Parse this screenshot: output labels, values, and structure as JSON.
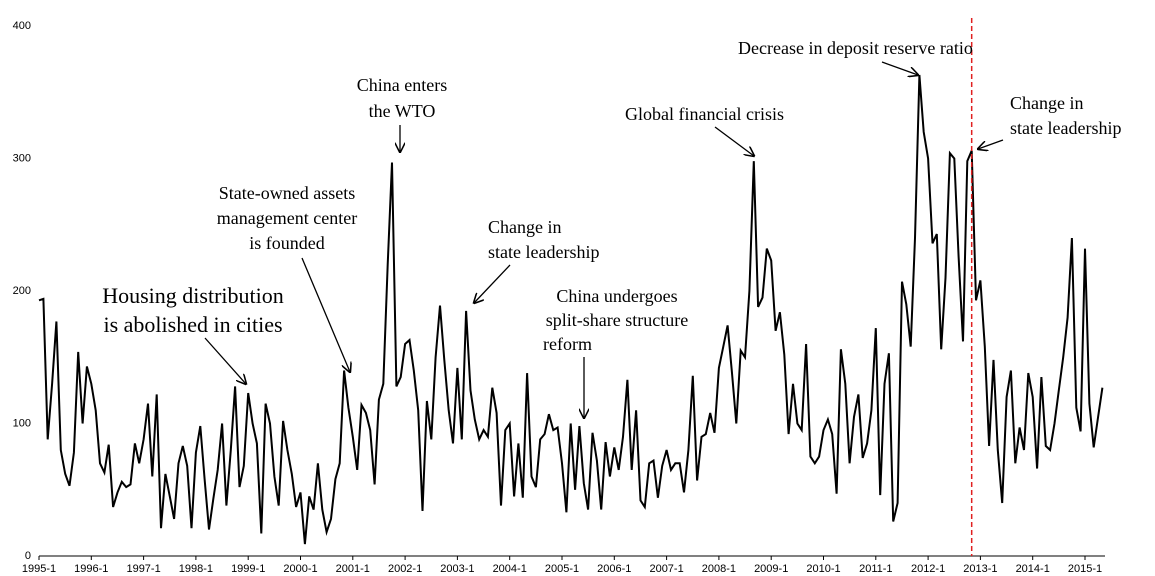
{
  "chart_data": {
    "type": "line",
    "categories": [
      "1995-1",
      null,
      null,
      null,
      null,
      null,
      null,
      null,
      null,
      null,
      null,
      null,
      "1996-1",
      null,
      null,
      null,
      null,
      null,
      null,
      null,
      null,
      null,
      null,
      null,
      "1997-1",
      null,
      null,
      null,
      null,
      null,
      null,
      null,
      null,
      null,
      null,
      null,
      "1998-1",
      null,
      null,
      null,
      null,
      null,
      null,
      null,
      null,
      null,
      null,
      null,
      "1999-1",
      null,
      null,
      null,
      null,
      null,
      null,
      null,
      null,
      null,
      null,
      null,
      "2000-1",
      null,
      null,
      null,
      null,
      null,
      null,
      null,
      null,
      null,
      null,
      null,
      "2001-1",
      null,
      null,
      null,
      null,
      null,
      null,
      null,
      null,
      null,
      null,
      null,
      "2002-1",
      null,
      null,
      null,
      null,
      null,
      null,
      null,
      null,
      null,
      null,
      null,
      "2003-1",
      null,
      null,
      null,
      null,
      null,
      null,
      null,
      null,
      null,
      null,
      null,
      "2004-1",
      null,
      null,
      null,
      null,
      null,
      null,
      null,
      null,
      null,
      null,
      null,
      "2005-1",
      null,
      null,
      null,
      null,
      null,
      null,
      null,
      null,
      null,
      null,
      null,
      "2006-1",
      null,
      null,
      null,
      null,
      null,
      null,
      null,
      null,
      null,
      null,
      null,
      "2007-1",
      null,
      null,
      null,
      null,
      null,
      null,
      null,
      null,
      null,
      null,
      null,
      "2008-1",
      null,
      null,
      null,
      null,
      null,
      null,
      null,
      null,
      null,
      null,
      null,
      "2009-1",
      null,
      null,
      null,
      null,
      null,
      null,
      null,
      null,
      null,
      null,
      null,
      "2010-1",
      null,
      null,
      null,
      null,
      null,
      null,
      null,
      null,
      null,
      null,
      null,
      "2011-1",
      null,
      null,
      null,
      null,
      null,
      null,
      null,
      null,
      null,
      null,
      null,
      "2012-1",
      null,
      null,
      null,
      null,
      null,
      null,
      null,
      null,
      null,
      null,
      null,
      "2013-1",
      null,
      null,
      null,
      null,
      null,
      null,
      null,
      null,
      null,
      null,
      null,
      "2014-1",
      null,
      null,
      null,
      null,
      null,
      null,
      null,
      null,
      null,
      null,
      null,
      "2015-1",
      null,
      null,
      null,
      null
    ],
    "values": [
      193,
      194,
      88,
      130,
      177,
      80,
      62,
      53,
      78,
      154,
      100,
      143,
      130,
      110,
      70,
      63,
      84,
      37,
      48,
      56,
      52,
      54,
      85,
      70,
      88,
      115,
      60,
      122,
      21,
      62,
      45,
      28,
      70,
      83,
      68,
      21,
      78,
      98,
      58,
      20,
      43,
      65,
      100,
      38,
      80,
      128,
      52,
      68,
      123,
      100,
      85,
      17,
      115,
      100,
      60,
      38,
      102,
      80,
      62,
      37,
      48,
      9,
      45,
      35,
      70,
      35,
      18,
      28,
      58,
      70,
      140,
      112,
      90,
      65,
      114,
      108,
      95,
      54,
      118,
      130,
      220,
      297,
      128,
      135,
      160,
      163,
      140,
      110,
      34,
      117,
      88,
      150,
      189,
      148,
      110,
      85,
      142,
      88,
      185,
      125,
      103,
      88,
      95,
      90,
      127,
      108,
      38,
      95,
      100,
      45,
      85,
      44,
      138,
      60,
      52,
      88,
      92,
      107,
      95,
      97,
      70,
      33,
      100,
      50,
      98,
      55,
      35,
      93,
      72,
      35,
      86,
      60,
      82,
      65,
      90,
      133,
      65,
      110,
      42,
      37,
      70,
      72,
      44,
      68,
      80,
      65,
      70,
      70,
      48,
      80,
      136,
      57,
      90,
      92,
      108,
      93,
      142,
      158,
      174,
      138,
      100,
      155,
      150,
      200,
      298,
      188,
      195,
      232,
      223,
      170,
      184,
      152,
      92,
      130,
      100,
      95,
      160,
      75,
      70,
      75,
      95,
      103,
      92,
      47,
      156,
      130,
      70,
      105,
      122,
      74,
      85,
      110,
      172,
      46,
      130,
      153,
      26,
      40,
      207,
      190,
      158,
      240,
      363,
      320,
      300,
      236,
      243,
      156,
      210,
      304,
      300,
      226,
      162,
      298,
      306,
      193,
      208,
      158,
      83,
      148,
      80,
      40,
      120,
      140,
      70,
      97,
      80,
      138,
      120,
      66,
      135,
      83,
      80,
      100,
      125,
      150,
      180,
      240,
      112,
      94,
      232,
      115,
      82,
      105,
      127
    ],
    "color": "#000000",
    "ylim": [
      0,
      400
    ],
    "yticks": [
      0,
      100,
      200,
      300,
      400
    ],
    "vline": {
      "x": 214,
      "color": "#e02020"
    },
    "annotations": [
      {
        "lines": [
          "Housing distribution",
          "is abolished in cities"
        ]
      },
      {
        "lines": [
          "State-owned assets",
          "management center",
          "is founded"
        ]
      },
      {
        "lines": [
          "China enters",
          "the WTO"
        ]
      },
      {
        "lines": [
          "Change in",
          "state leadership"
        ]
      },
      {
        "lines": [
          "China undergoes",
          "split-share structure",
          "reform"
        ]
      },
      {
        "lines": [
          "Global financial crisis"
        ]
      },
      {
        "lines": [
          "Decrease in deposit reserve ratio"
        ]
      },
      {
        "lines": [
          "Change in",
          "state leadership"
        ]
      }
    ]
  }
}
